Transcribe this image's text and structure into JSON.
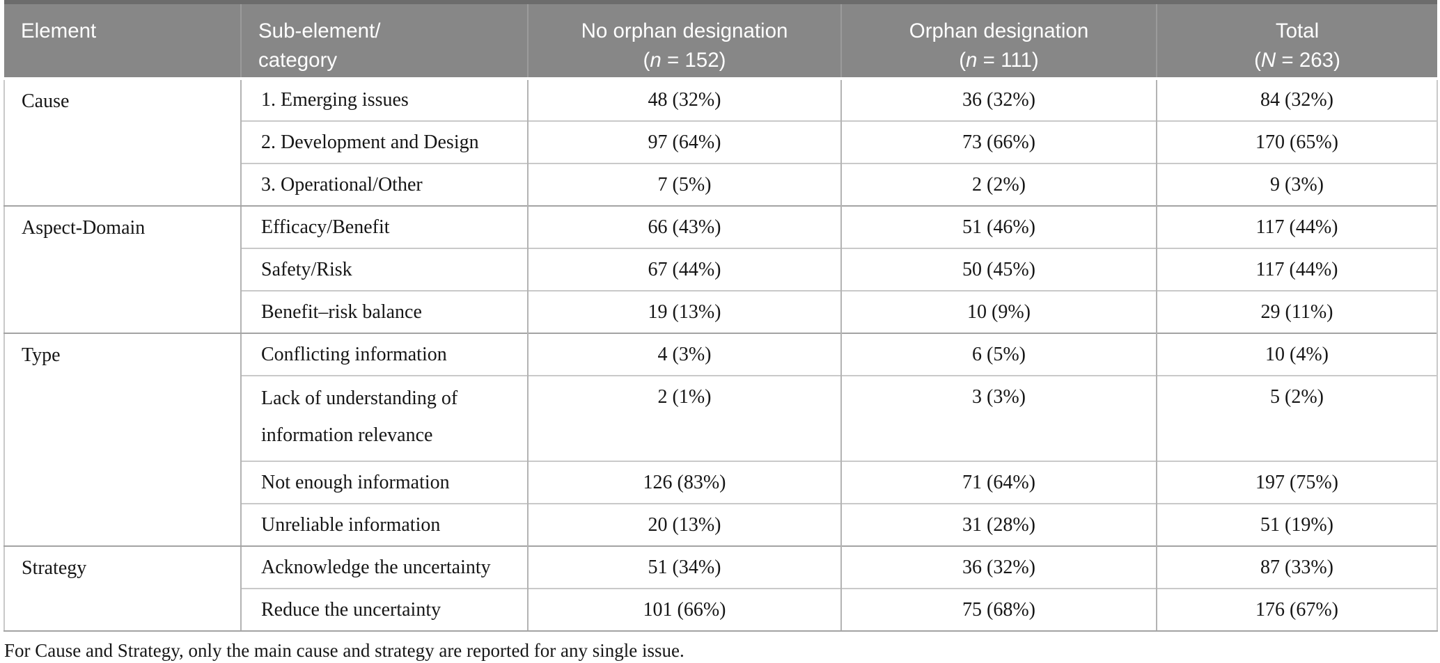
{
  "colors": {
    "header_bg": "#878787",
    "header_top_border": "#6c6c6c",
    "header_text": "#ffffff",
    "body_text": "#161616",
    "group_separator": "#a3a3a3",
    "inner_rule": "#c9c9c9",
    "vertical_rule": "#b3b3b3"
  },
  "table": {
    "header": [
      {
        "id": "element",
        "align": "left",
        "lines": [
          [
            {
              "t": "Element"
            }
          ]
        ]
      },
      {
        "id": "sub-element-category",
        "align": "left",
        "lines": [
          [
            {
              "t": "Sub-element/"
            }
          ],
          [
            {
              "t": "category"
            }
          ]
        ]
      },
      {
        "id": "no-orphan-designation",
        "align": "center",
        "lines": [
          [
            {
              "t": "No orphan designation"
            }
          ],
          [
            {
              "t": "("
            },
            {
              "t": "n",
              "i": true
            },
            {
              "t": " = 152)"
            }
          ]
        ]
      },
      {
        "id": "orphan-designation",
        "align": "center",
        "lines": [
          [
            {
              "t": "Orphan designation"
            }
          ],
          [
            {
              "t": "("
            },
            {
              "t": "n",
              "i": true
            },
            {
              "t": " = 111)"
            }
          ]
        ]
      },
      {
        "id": "total",
        "align": "center",
        "lines": [
          [
            {
              "t": "Total"
            }
          ],
          [
            {
              "t": "("
            },
            {
              "t": "N",
              "i": true
            },
            {
              "t": " = 263)"
            }
          ]
        ]
      }
    ],
    "groups": [
      {
        "element": "Cause",
        "rows": [
          {
            "category": "1. Emerging issues",
            "no_orphan": "48 (32%)",
            "orphan": "36 (32%)",
            "total": "84 (32%)"
          },
          {
            "category": "2. Development and Design",
            "no_orphan": "97 (64%)",
            "orphan": "73 (66%)",
            "total": "170 (65%)"
          },
          {
            "category": "3. Operational/Other",
            "no_orphan": "7 (5%)",
            "orphan": "2 (2%)",
            "total": "9 (3%)"
          }
        ]
      },
      {
        "element": "Aspect-Domain",
        "rows": [
          {
            "category": "Efficacy/Benefit",
            "no_orphan": "66 (43%)",
            "orphan": "51 (46%)",
            "total": "117 (44%)"
          },
          {
            "category": "Safety/Risk",
            "no_orphan": "67 (44%)",
            "orphan": "50 (45%)",
            "total": "117 (44%)"
          },
          {
            "category": "Benefit–risk balance",
            "no_orphan": "19 (13%)",
            "orphan": "10 (9%)",
            "total": "29 (11%)"
          }
        ]
      },
      {
        "element": "Type",
        "rows": [
          {
            "category": "Conflicting information",
            "no_orphan": "4 (3%)",
            "orphan": "6 (5%)",
            "total": "10 (4%)"
          },
          {
            "category": "Lack of understanding of information relevance",
            "tall": true,
            "no_orphan": "2 (1%)",
            "orphan": "3 (3%)",
            "total": "5 (2%)"
          },
          {
            "category": "Not enough information",
            "no_orphan": "126 (83%)",
            "orphan": "71 (64%)",
            "total": "197 (75%)"
          },
          {
            "category": "Unreliable information",
            "no_orphan": "20 (13%)",
            "orphan": "31 (28%)",
            "total": "51 (19%)"
          }
        ]
      },
      {
        "element": "Strategy",
        "rows": [
          {
            "category": "Acknowledge the uncertainty",
            "no_orphan": "51 (34%)",
            "orphan": "36 (32%)",
            "total": "87 (33%)"
          },
          {
            "category": "Reduce the uncertainty",
            "no_orphan": "101 (66%)",
            "orphan": "75 (68%)",
            "total": "176 (67%)"
          }
        ]
      }
    ]
  },
  "footnote": "For Cause and Strategy, only the main cause and strategy are reported for any single issue."
}
